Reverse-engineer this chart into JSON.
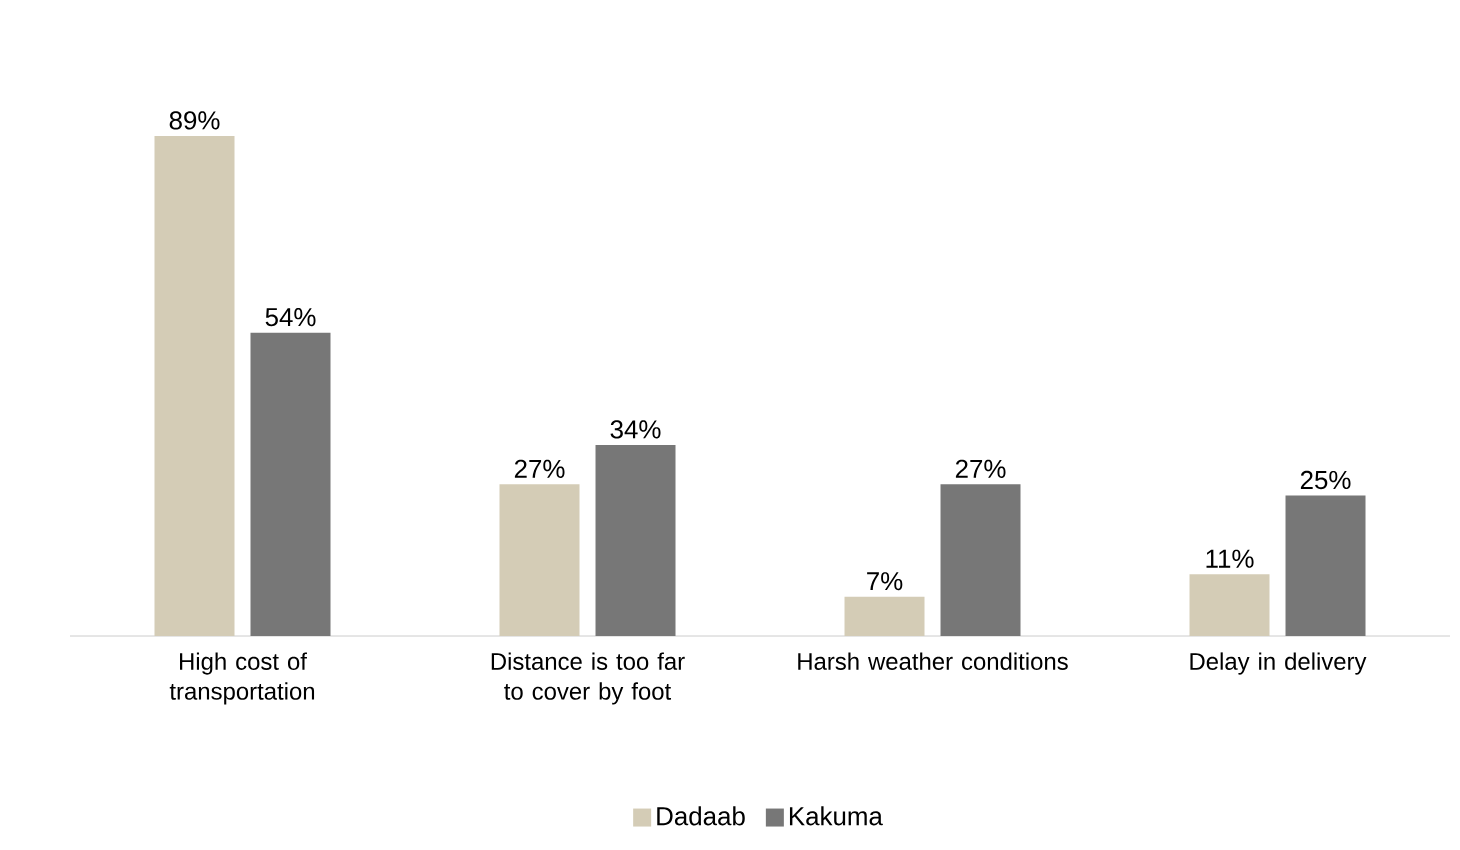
{
  "chart_data": {
    "type": "bar",
    "categories": [
      "High cost of transportation",
      "Distance is too far to cover by foot",
      "Harsh weather conditions",
      "Delay in delivery"
    ],
    "series": [
      {
        "name": "Dadaab",
        "color": "#d4ccb6",
        "values": [
          89,
          27,
          7,
          11
        ],
        "value_labels": [
          "89%",
          "27%",
          "7%",
          "11%"
        ]
      },
      {
        "name": "Kakuma",
        "color": "#777777",
        "values": [
          54,
          34,
          27,
          25
        ],
        "value_labels": [
          "54%",
          "34%",
          "27%",
          "25%"
        ]
      }
    ],
    "legend": "bottom"
  }
}
